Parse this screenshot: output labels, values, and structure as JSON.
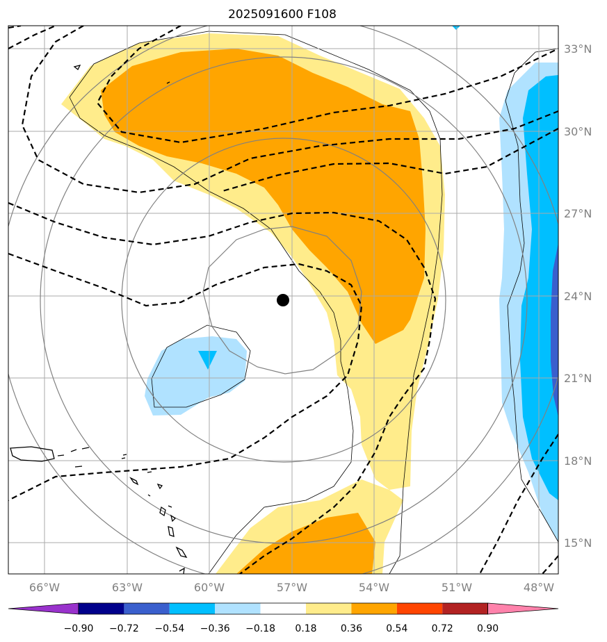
{
  "title": "2025091600 F108",
  "lon_labels": [
    "66°W",
    "63°W",
    "60°W",
    "57°W",
    "54°W",
    "51°W",
    "48°W"
  ],
  "lat_labels": [
    "33°N",
    "30°N",
    "27°N",
    "24°N",
    "21°N",
    "18°N",
    "15°N"
  ],
  "colorbar": {
    "tick_labels": [
      "−0.90",
      "−0.72",
      "−0.54",
      "−0.36",
      "−0.18",
      "0.18",
      "0.36",
      "0.54",
      "0.72",
      "0.90"
    ],
    "colors": [
      "#9932cc",
      "#00008b",
      "#3a5fcd",
      "#00bfff",
      "#b0e2ff",
      "#ffffff",
      "#ffec8b",
      "#ffa500",
      "#ff4500",
      "#b22222",
      "#ff82ab"
    ]
  },
  "shading_colors": {
    "yellow": "#ffec8b",
    "orange": "#ffa500",
    "lightblue": "#b0e2ff",
    "blue": "#00bfff",
    "royalblue": "#3a5fcd",
    "gridline": "#aaaaaa",
    "ring": "#808080"
  },
  "storm_center": {
    "lon": -57.3,
    "lat": 23.8,
    "label": "storm-center"
  }
}
